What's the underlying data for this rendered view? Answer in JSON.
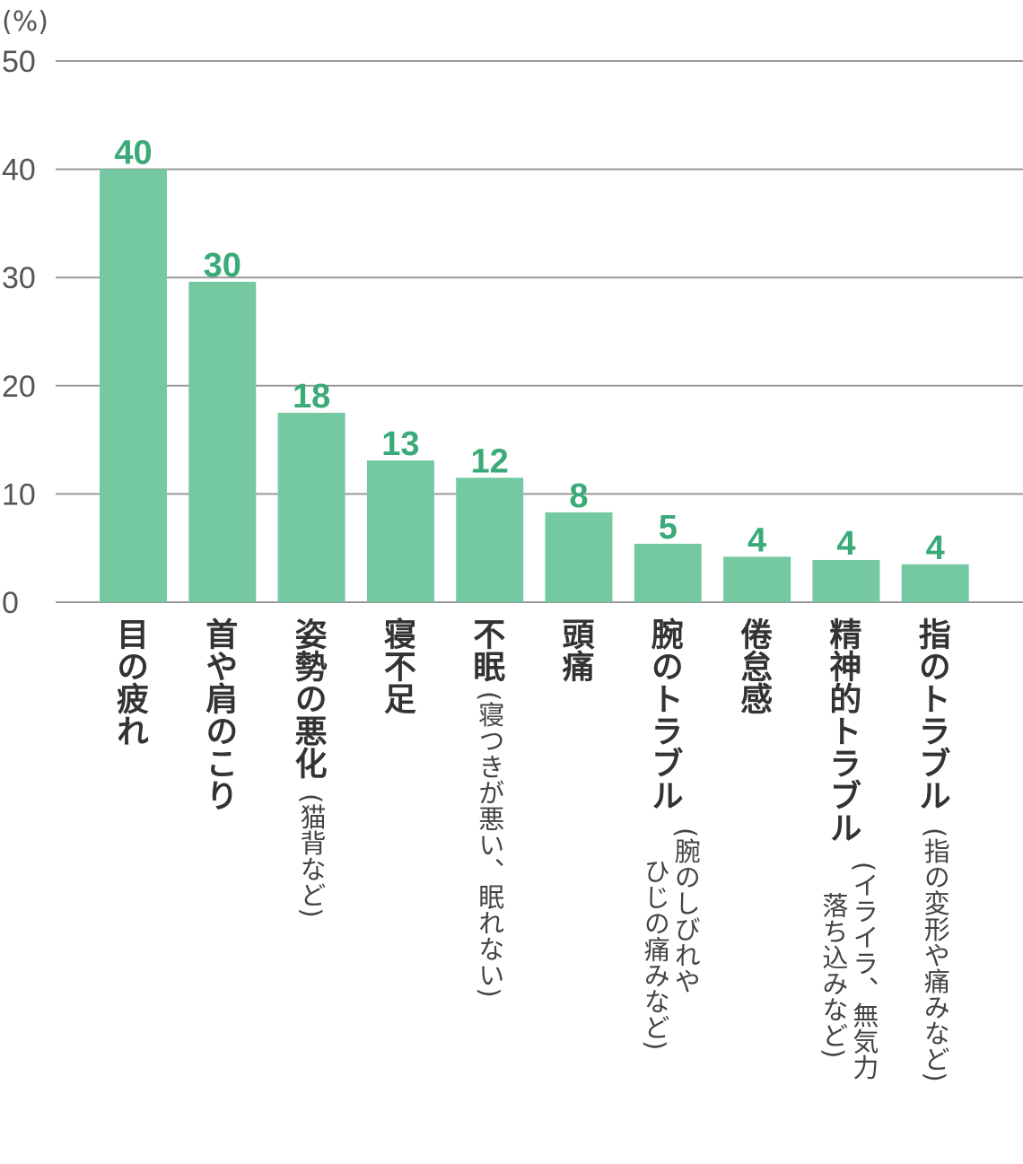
{
  "chart_data": {
    "type": "bar",
    "title": "",
    "xlabel": "",
    "ylabel": "(%)",
    "ylim": [
      0,
      50
    ],
    "yticks": [
      "0",
      "10",
      "20",
      "30",
      "40",
      "50"
    ],
    "grid": true,
    "legend": "none",
    "colors": {
      "bar": "#74c9a3",
      "value_label": "#3aaa78",
      "grid": "#999999",
      "axis_text": "#555555"
    },
    "categories": [
      {
        "main": "目の疲れ",
        "sub": []
      },
      {
        "main": "首や肩のこり",
        "sub": []
      },
      {
        "main": "姿勢の悪化",
        "sub": [
          "(猫背など)"
        ]
      },
      {
        "main": "寝不足",
        "sub": []
      },
      {
        "main": "不眠",
        "sub": [
          "(寝つきが悪い、眠れない)"
        ]
      },
      {
        "main": "頭痛",
        "sub": []
      },
      {
        "main": "腕のトラブル",
        "sub": [
          "(腕のしびれや",
          "ひじの痛みなど)"
        ]
      },
      {
        "main": "倦怠感",
        "sub": []
      },
      {
        "main": "精神的トラブル",
        "sub": [
          "(イライラ、無気力",
          "落ち込みなど)"
        ]
      },
      {
        "main": "指のトラブル",
        "sub": [
          "(指の変形や痛みなど)"
        ]
      }
    ],
    "values": [
      40,
      29.6,
      17.5,
      13.1,
      11.5,
      8.3,
      5.4,
      4.2,
      3.9,
      3.5
    ],
    "value_labels": [
      "40",
      "30",
      "18",
      "13",
      "12",
      "8",
      "5",
      "4",
      "4",
      "4"
    ]
  }
}
